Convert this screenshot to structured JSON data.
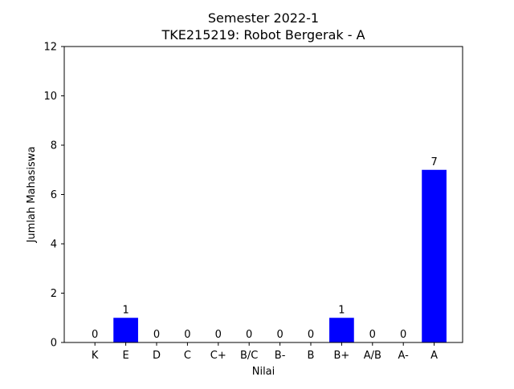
{
  "chart_data": {
    "type": "bar",
    "title": "Semester 2022-1",
    "subtitle": "TKE215219: Robot Bergerak - A",
    "xlabel": "Nilai",
    "ylabel": "Jumlah Mahasiswa",
    "categories": [
      "K",
      "E",
      "D",
      "C",
      "C+",
      "B/C",
      "B-",
      "B",
      "B+",
      "A/B",
      "A-",
      "A"
    ],
    "values": [
      0,
      1,
      0,
      0,
      0,
      0,
      0,
      0,
      1,
      0,
      0,
      7
    ],
    "ylim": [
      0,
      12
    ],
    "yticks": [
      0,
      2,
      4,
      6,
      8,
      10,
      12
    ],
    "bar_color": "#0000ff",
    "grid": false,
    "legend": "none"
  }
}
